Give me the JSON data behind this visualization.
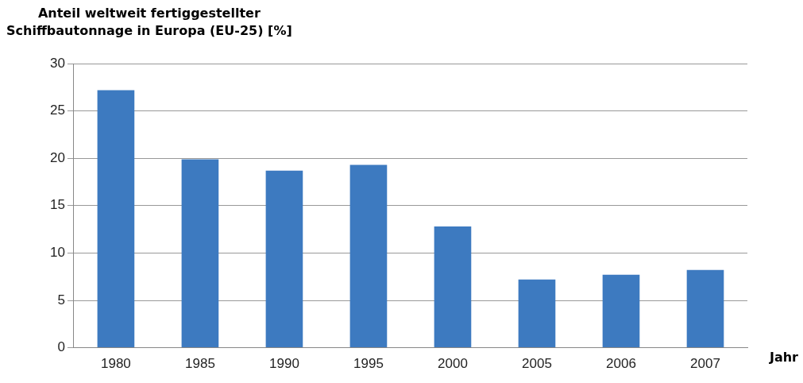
{
  "chart_data": {
    "type": "bar",
    "ylabel": "Anteil weltweit fertiggestellter\nSchiffbautonnage in Europa (EU-25) [%]",
    "xlabel": "Jahr",
    "categories": [
      "1980",
      "1985",
      "1990",
      "1995",
      "2000",
      "2005",
      "2006",
      "2007"
    ],
    "values": [
      27.2,
      19.9,
      18.7,
      19.3,
      12.8,
      7.2,
      7.7,
      8.2
    ],
    "color": "#3d7ac0",
    "ylim": [
      0,
      30
    ],
    "yticks": [
      0,
      5,
      10,
      15,
      20,
      25,
      30
    ],
    "grid": "y"
  }
}
